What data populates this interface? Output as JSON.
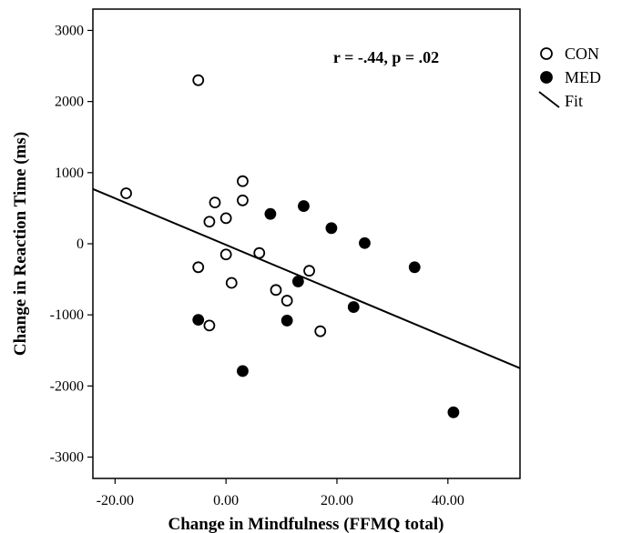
{
  "chart_data": {
    "type": "scatter",
    "title": "",
    "xlabel": "Change in Mindfulness (FFMQ total)",
    "ylabel": "Change in Reaction Time (ms)",
    "xlim": [
      -24,
      53
    ],
    "ylim": [
      -3300,
      3300
    ],
    "x_ticks": [
      -20,
      0,
      20,
      40
    ],
    "x_tick_labels": [
      "-20.00",
      "0.00",
      "20.00",
      "40.00"
    ],
    "y_ticks": [
      3000,
      2000,
      1000,
      0,
      -1000,
      -2000,
      -3000
    ],
    "y_tick_labels": [
      "3000",
      "2000",
      "1000",
      "0",
      "-1000",
      "-2000",
      "-3000"
    ],
    "grid": false,
    "annotation": "r = -.44, p = .02",
    "legend": {
      "placement": "outside-right",
      "items": [
        {
          "label": "CON",
          "marker": "open-circle"
        },
        {
          "label": "MED",
          "marker": "filled-circle"
        },
        {
          "label": "Fit",
          "marker": "line"
        }
      ]
    },
    "series": [
      {
        "name": "CON",
        "marker": "open-circle",
        "points": [
          {
            "x": -18,
            "y": 710
          },
          {
            "x": -5,
            "y": 2300
          },
          {
            "x": -5,
            "y": -330
          },
          {
            "x": -3,
            "y": 310
          },
          {
            "x": -3,
            "y": -1150
          },
          {
            "x": -2,
            "y": 580
          },
          {
            "x": 0,
            "y": 360
          },
          {
            "x": 0,
            "y": -150
          },
          {
            "x": 1,
            "y": -550
          },
          {
            "x": 3,
            "y": 880
          },
          {
            "x": 3,
            "y": 610
          },
          {
            "x": 6,
            "y": -130
          },
          {
            "x": 9,
            "y": -650
          },
          {
            "x": 11,
            "y": -800
          },
          {
            "x": 15,
            "y": -380
          },
          {
            "x": 17,
            "y": -1230
          }
        ]
      },
      {
        "name": "MED",
        "marker": "filled-circle",
        "points": [
          {
            "x": -5,
            "y": -1070
          },
          {
            "x": 3,
            "y": -1790
          },
          {
            "x": 8,
            "y": 420
          },
          {
            "x": 11,
            "y": -1080
          },
          {
            "x": 13,
            "y": -530
          },
          {
            "x": 14,
            "y": 530
          },
          {
            "x": 19,
            "y": 220
          },
          {
            "x": 23,
            "y": -890
          },
          {
            "x": 25,
            "y": 10
          },
          {
            "x": 34,
            "y": -330
          },
          {
            "x": 41,
            "y": -2370
          }
        ]
      }
    ],
    "fit_line": {
      "name": "Fit",
      "start": {
        "x": -24,
        "y": 770
      },
      "end": {
        "x": 53,
        "y": -1750
      }
    }
  }
}
